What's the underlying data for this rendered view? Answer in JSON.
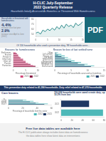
{
  "title": "H-CLIC July-September\n2022 Quarterly Release",
  "subtitle": "Households Initially Assessed As Homeless or Threatened With Homelessness",
  "annotations": [
    "Households in threatened with\nhomelessness",
    "4.4%",
    "increase since last year",
    "2.9%",
    "increase since April to June (2022)",
    "PDF",
    "Of 116 households who used a prevention duty, 98 households were...",
    "This prevention duty related to 41,390 households. Duty relief related to 47,370 households",
    "Free live data tables are available here",
    "The H-CLIC publication always includes latest data on homelessness",
    "the data tables here show latest data on interventions"
  ],
  "chart_data": [
    {
      "type": "line",
      "x": [
        0,
        1,
        2,
        3,
        4,
        5,
        6,
        7,
        8,
        9,
        10,
        11,
        12,
        13,
        14,
        15,
        16,
        17,
        18,
        19,
        20
      ],
      "values": [
        52,
        54,
        50,
        58,
        55,
        60,
        57,
        62,
        58,
        65,
        60,
        68,
        62,
        70,
        65,
        68,
        63,
        72,
        67,
        70,
        75
      ],
      "color": "#2e8b8b",
      "xlim": [
        0,
        20
      ],
      "xticks": [
        0,
        5,
        10,
        15,
        20
      ],
      "ylim": [
        45,
        80
      ],
      "yticks": [
        50,
        60,
        70,
        80
      ],
      "grid": false
    },
    {
      "type": "bar",
      "orientation": "horizontal",
      "title": "Reasons for homelessness",
      "x_label": "Percentage threatened",
      "categories": [
        "Partner/ex",
        "Parents",
        "Other rel/",
        "Other fami",
        "Private re",
        "Evicted",
        "End tenanc"
      ],
      "series": [
        {
          "name": "2021",
          "color": "#d4477a",
          "values": [
            8,
            6,
            5,
            4,
            2.5,
            2,
            1
          ]
        },
        {
          "name": "2022",
          "color": "#8b1a44",
          "values": [
            9,
            7,
            5,
            4,
            3,
            2,
            1.5
          ]
        }
      ],
      "xlim": [
        0,
        10
      ],
      "xticks": [
        0,
        5,
        10
      ],
      "legend": "lower right",
      "grid": false
    },
    {
      "type": "bar",
      "orientation": "horizontal",
      "title": "Reason for loss of last settled home",
      "x_label": "Percentage of households assessed as homeless",
      "categories": [
        "End assured",
        "Mortgage rep",
        "Non-decent h",
        "Harassment",
        "Required by",
        "Left institu",
        "Fleeing viol",
        "Left armed f",
        "Other"
      ],
      "series": [
        {
          "name": "2021",
          "color": "#4db8b8",
          "values": [
            12,
            10,
            8,
            6,
            5,
            4,
            3,
            2,
            1
          ]
        },
        {
          "name": "2022",
          "color": "#1f3864",
          "values": [
            11,
            9,
            7,
            5,
            4,
            3,
            2,
            1,
            0.5
          ]
        }
      ],
      "xlim": [
        0,
        15
      ],
      "xticks": [
        0,
        5,
        10,
        15
      ],
      "legend": "lower right",
      "grid": false
    },
    {
      "type": "bar",
      "orientation": "horizontal",
      "title": "Care leavers",
      "x_label": "Percentage of households from this sector",
      "categories": [
        "16-17",
        "18-20",
        "21-24",
        "25+"
      ],
      "series": [
        {
          "name": "2022",
          "color": "#4db8b8",
          "values": [
            55,
            42,
            35,
            25
          ]
        },
        {
          "name": "2021",
          "color": "#1f3864",
          "values": [
            50,
            38,
            30,
            20
          ]
        }
      ],
      "xlim": [
        0,
        60
      ],
      "xticks": [
        0,
        20,
        40,
        60
      ],
      "legend": "lower right",
      "grid": false
    },
    {
      "type": "bar",
      "orientation": "horizontal",
      "title": "116,036 households were owed a main duty, up 10.2% from last",
      "categories": [
        "2022",
        "2021"
      ],
      "values": [
        78,
        52
      ],
      "colors": [
        "#4db8b8",
        "#1f3864"
      ],
      "xlim": [
        0,
        80
      ],
      "xticks": [
        0,
        20,
        40,
        60,
        80
      ],
      "grid": false
    }
  ]
}
